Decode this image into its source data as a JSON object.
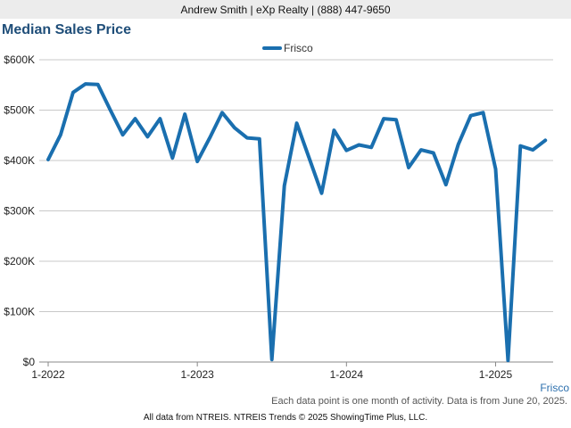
{
  "header": {
    "agent": "Andrew Smith | eXp Realty | (888) 447-9650"
  },
  "chart_data": {
    "type": "line",
    "title": "Median Sales Price",
    "xlabel": "",
    "ylabel": "",
    "ylim": [
      0,
      600000
    ],
    "yticks": [
      "$0",
      "$100K",
      "$200K",
      "$300K",
      "$400K",
      "$500K",
      "$600K"
    ],
    "xticks": [
      "1-2022",
      "1-2023",
      "1-2024",
      "1-2025"
    ],
    "legend": "top-center",
    "grid": true,
    "series": [
      {
        "name": "Frisco",
        "color": "#1a6faf",
        "x": [
          "2022-01",
          "2022-02",
          "2022-03",
          "2022-04",
          "2022-05",
          "2022-06",
          "2022-07",
          "2022-08",
          "2022-09",
          "2022-10",
          "2022-11",
          "2022-12",
          "2023-01",
          "2023-02",
          "2023-03",
          "2023-04",
          "2023-05",
          "2023-06",
          "2023-07",
          "2023-08",
          "2023-09",
          "2023-10",
          "2023-11",
          "2023-12",
          "2024-01",
          "2024-02",
          "2024-03",
          "2024-04",
          "2024-05",
          "2024-06",
          "2024-07",
          "2024-08",
          "2024-09",
          "2024-10",
          "2024-11",
          "2024-12",
          "2025-01",
          "2025-02",
          "2025-03",
          "2025-04",
          "2025-05"
        ],
        "values": [
          402000,
          451000,
          535000,
          552000,
          551000,
          500000,
          451000,
          483000,
          447000,
          483000,
          405000,
          492000,
          398000,
          445000,
          495000,
          465000,
          445000,
          443000,
          5000,
          350000,
          474000,
          405000,
          335000,
          460000,
          420000,
          431000,
          426000,
          483000,
          481000,
          386000,
          421000,
          415000,
          352000,
          432000,
          489000,
          495000,
          383000,
          3000,
          429000,
          421000,
          440000
        ]
      }
    ]
  },
  "footnote": "Each data point is one month of activity. Data is from June 20, 2025.",
  "credits": "All data from NTREIS. NTREIS Trends © 2025 ShowingTime Plus, LLC.",
  "series_tag": "Frisco"
}
